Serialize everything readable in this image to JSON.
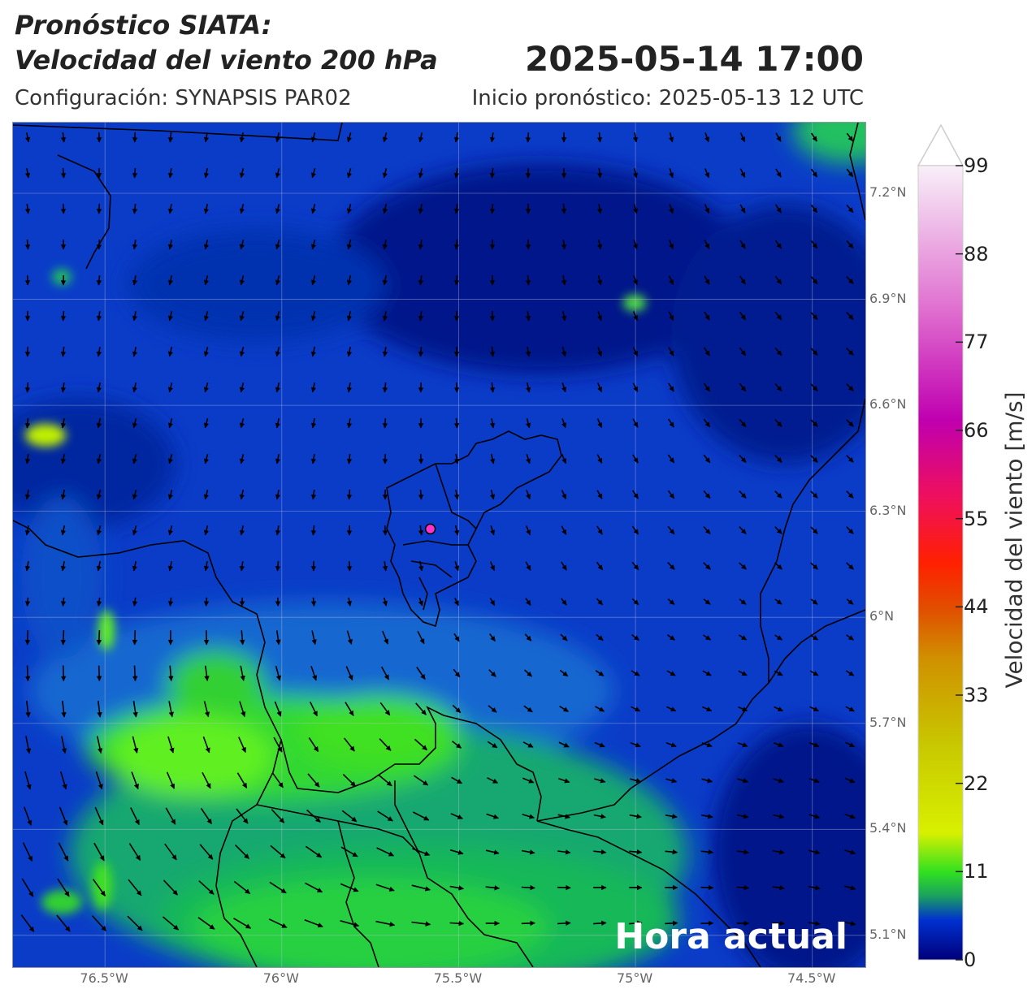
{
  "header": {
    "title_line1": "Pronóstico SIATA:",
    "title_line2": "Velocidad del viento 200 hPa",
    "datetime": "2025-05-14 17:00",
    "config": "Configuración: SYNAPSIS PAR02",
    "init": "Inicio pronóstico: 2025-05-13 12 UTC"
  },
  "map": {
    "lat_labels": [
      "7.2°N",
      "6.9°N",
      "6.6°N",
      "6.3°N",
      "6°N",
      "5.7°N",
      "5.4°N",
      "5.1°N"
    ],
    "lat_values": [
      7.2,
      6.9,
      6.6,
      6.3,
      6.0,
      5.7,
      5.4,
      5.1
    ],
    "lon_labels": [
      "76.5°W",
      "76°W",
      "75.5°W",
      "75°W",
      "74.5°W"
    ],
    "lon_values": [
      -76.5,
      -76.0,
      -75.5,
      -75.0,
      -74.5
    ],
    "extent": {
      "lon_min": -76.76,
      "lon_max": -74.35,
      "lat_min": 5.01,
      "lat_max": 7.4
    },
    "marker": {
      "lon": -75.58,
      "lat": 6.25,
      "color": "#ff33cc"
    },
    "overlay_text": "Hora actual",
    "grid": true
  },
  "colorbar": {
    "label": "Velocidad del viento [m/s]",
    "ticks": [
      "99",
      "88",
      "77",
      "66",
      "55",
      "44",
      "33",
      "22",
      "11",
      "0"
    ],
    "tick_values": [
      99,
      88,
      77,
      66,
      55,
      44,
      33,
      22,
      11,
      0
    ],
    "min": 0,
    "max": 99,
    "extend": "max",
    "colors": [
      "#00007a",
      "#0040e0",
      "#1aa060",
      "#30e020",
      "#d8f000",
      "#c8c800",
      "#d09000",
      "#e05000",
      "#ff2000",
      "#f0105a",
      "#c000b0",
      "#e070d0",
      "#f8f0f8"
    ]
  }
}
